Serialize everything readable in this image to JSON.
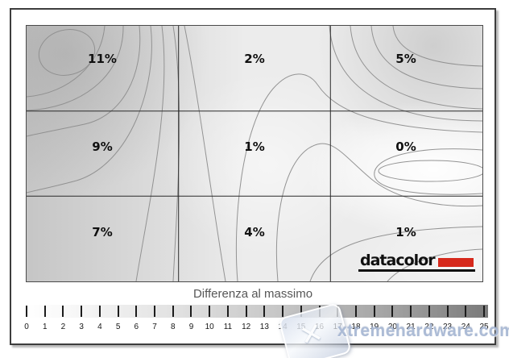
{
  "watermark": {
    "text": "xtremehardware.com"
  },
  "brand": {
    "name": "datacolor",
    "accent_color": "#d6291c"
  },
  "chart_data": {
    "type": "heatmap",
    "subtype": "contour-uniformity-map",
    "grid": {
      "rows": 3,
      "cols": 3
    },
    "cells": [
      [
        "11%",
        "2%",
        "5%"
      ],
      [
        "9%",
        "1%",
        "0%"
      ],
      [
        "7%",
        "4%",
        "1%"
      ]
    ],
    "cell_values_percent": [
      [
        11,
        2,
        5
      ],
      [
        9,
        1,
        0
      ],
      [
        7,
        4,
        1
      ]
    ],
    "scale": {
      "label": "Differenza al massimo",
      "min": 0,
      "max": 25,
      "tick_labels": [
        "0",
        "1",
        "2",
        "3",
        "4",
        "5",
        "6",
        "7",
        "8",
        "9",
        "10",
        "11",
        "12",
        "13",
        "14",
        "15",
        "16",
        "17",
        "18",
        "19",
        "20",
        "21",
        "22",
        "23",
        "24",
        "25"
      ],
      "gradient_left_color": "#ffffff",
      "gradient_right_color": "#7a7a7a"
    },
    "contour_line_color": "#8f8f8f",
    "legend_position": "bottom"
  }
}
